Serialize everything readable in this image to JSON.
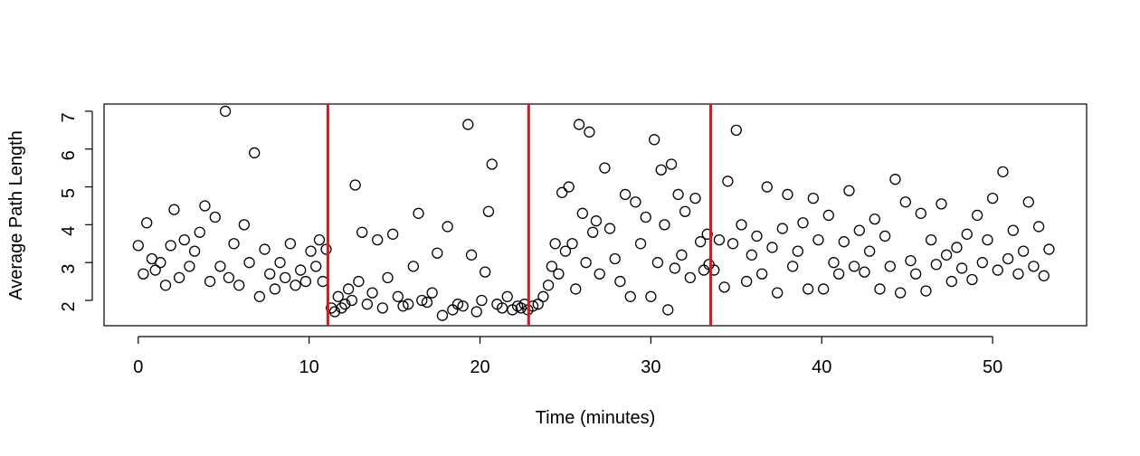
{
  "chart_data": {
    "type": "scatter",
    "x_label": "Time (minutes)",
    "y_label": "Average Path Length",
    "xlim": [
      -2.0,
      55.5
    ],
    "ylim": [
      1.33,
      7.19
    ],
    "xticks": [
      0,
      10,
      20,
      30,
      40,
      50
    ],
    "yticks": [
      2,
      3,
      4,
      5,
      6,
      7
    ],
    "color": "#000000",
    "vlines": [
      11.1,
      22.85,
      33.5
    ],
    "vline_color": "#e0161b",
    "x": [
      0.0,
      0.3,
      0.5,
      0.8,
      1.0,
      1.3,
      1.6,
      1.9,
      2.1,
      2.4,
      2.7,
      3.0,
      3.3,
      3.6,
      3.9,
      4.2,
      4.5,
      4.8,
      5.1,
      5.3,
      5.6,
      5.9,
      6.2,
      6.5,
      6.8,
      7.1,
      7.4,
      7.7,
      8.0,
      8.3,
      8.6,
      8.9,
      9.2,
      9.5,
      9.8,
      10.1,
      10.4,
      10.6,
      10.8,
      11.0,
      11.3,
      11.5,
      11.7,
      11.9,
      12.1,
      12.3,
      12.5,
      12.7,
      12.9,
      13.1,
      13.4,
      13.7,
      14.0,
      14.3,
      14.6,
      14.9,
      15.2,
      15.5,
      15.8,
      16.1,
      16.4,
      16.6,
      16.9,
      17.2,
      17.5,
      17.8,
      18.1,
      18.4,
      18.7,
      19.0,
      19.3,
      19.5,
      19.8,
      20.1,
      20.3,
      20.5,
      20.7,
      21.0,
      21.3,
      21.6,
      21.9,
      22.2,
      22.4,
      22.6,
      22.8,
      23.1,
      23.4,
      23.7,
      24.0,
      24.2,
      24.4,
      24.6,
      24.8,
      25.0,
      25.2,
      25.4,
      25.6,
      25.8,
      26.0,
      26.2,
      26.4,
      26.6,
      26.8,
      27.0,
      27.3,
      27.6,
      27.9,
      28.2,
      28.5,
      28.8,
      29.1,
      29.4,
      29.7,
      30.0,
      30.2,
      30.4,
      30.6,
      30.8,
      31.0,
      31.2,
      31.4,
      31.6,
      31.8,
      32.0,
      32.3,
      32.6,
      32.9,
      33.1,
      33.3,
      33.4,
      33.7,
      34.0,
      34.3,
      34.5,
      34.8,
      35.0,
      35.3,
      35.6,
      35.9,
      36.2,
      36.5,
      36.8,
      37.1,
      37.4,
      37.7,
      38.0,
      38.3,
      38.6,
      38.9,
      39.2,
      39.5,
      39.8,
      40.1,
      40.4,
      40.7,
      41.0,
      41.3,
      41.6,
      41.9,
      42.2,
      42.5,
      42.8,
      43.1,
      43.4,
      43.7,
      44.0,
      44.3,
      44.6,
      44.9,
      45.2,
      45.5,
      45.8,
      46.1,
      46.4,
      46.7,
      47.0,
      47.3,
      47.6,
      47.9,
      48.2,
      48.5,
      48.8,
      49.1,
      49.4,
      49.7,
      50.0,
      50.3,
      50.6,
      50.9,
      51.2,
      51.5,
      51.8,
      52.1,
      52.4,
      52.7,
      53.0,
      53.3
    ],
    "values": [
      3.45,
      2.7,
      4.05,
      3.1,
      2.8,
      3.0,
      2.4,
      3.45,
      4.4,
      2.6,
      3.6,
      2.9,
      3.3,
      3.8,
      4.5,
      2.5,
      4.2,
      2.9,
      7.0,
      2.6,
      3.5,
      2.4,
      4.0,
      3.0,
      5.9,
      2.1,
      3.35,
      2.7,
      2.3,
      3.0,
      2.6,
      3.5,
      2.4,
      2.8,
      2.5,
      3.3,
      2.9,
      3.6,
      2.5,
      3.35,
      1.8,
      1.7,
      2.1,
      1.8,
      1.9,
      2.3,
      2.0,
      5.05,
      2.5,
      3.8,
      1.9,
      2.2,
      3.6,
      1.8,
      2.6,
      3.75,
      2.1,
      1.85,
      1.9,
      2.9,
      4.3,
      2.0,
      1.95,
      2.2,
      3.25,
      1.6,
      3.95,
      1.75,
      1.9,
      1.85,
      6.65,
      3.2,
      1.7,
      2.0,
      2.75,
      4.35,
      5.6,
      1.9,
      1.8,
      2.1,
      1.75,
      1.85,
      1.8,
      1.9,
      1.75,
      1.85,
      1.9,
      2.1,
      2.4,
      2.9,
      3.5,
      2.7,
      4.85,
      3.3,
      5.0,
      3.5,
      2.3,
      6.65,
      4.3,
      3.0,
      6.45,
      3.8,
      4.1,
      2.7,
      5.5,
      3.9,
      3.1,
      2.5,
      4.8,
      2.1,
      4.6,
      3.5,
      4.2,
      2.1,
      6.25,
      3.0,
      5.45,
      4.0,
      1.75,
      5.6,
      2.85,
      4.8,
      3.2,
      4.35,
      2.6,
      4.7,
      3.55,
      2.8,
      3.75,
      2.95,
      2.8,
      3.6,
      2.35,
      5.15,
      3.5,
      6.5,
      4.0,
      2.5,
      3.2,
      3.7,
      2.7,
      5.0,
      3.4,
      2.2,
      3.9,
      4.8,
      2.9,
      3.3,
      4.05,
      2.3,
      4.7,
      3.6,
      2.3,
      4.25,
      3.0,
      2.7,
      3.55,
      4.9,
      2.9,
      3.85,
      2.75,
      3.3,
      4.15,
      2.3,
      3.7,
      2.9,
      5.2,
      2.2,
      4.6,
      3.05,
      2.7,
      4.3,
      2.25,
      3.6,
      2.95,
      4.55,
      3.2,
      2.5,
      3.4,
      2.85,
      3.75,
      2.55,
      4.25,
      3.0,
      3.6,
      4.7,
      2.8,
      5.4,
      3.1,
      3.85,
      2.7,
      3.3,
      4.6,
      2.9,
      3.95,
      2.65,
      3.35
    ]
  }
}
